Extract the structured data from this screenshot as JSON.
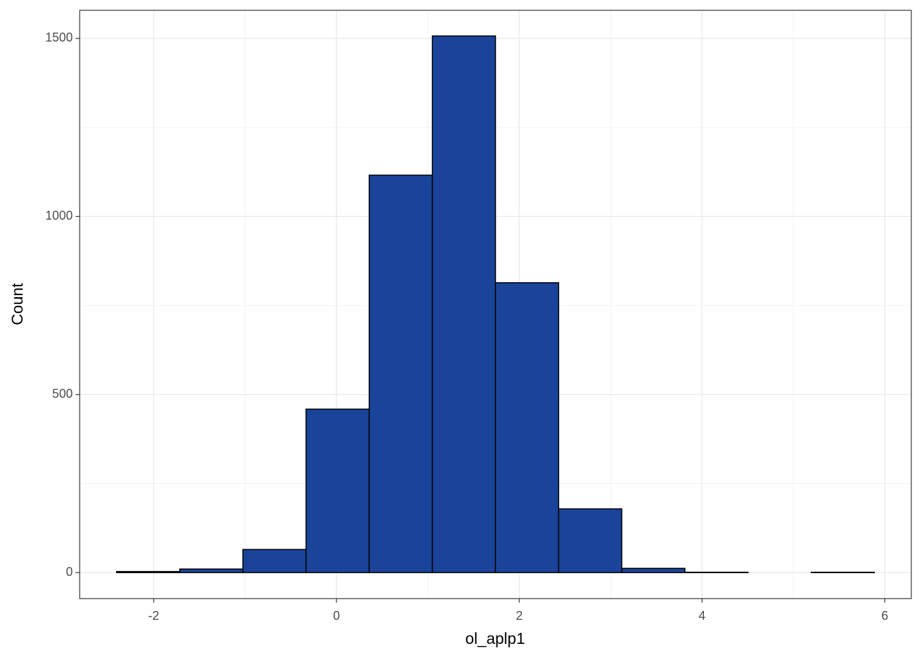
{
  "chart_data": {
    "type": "histogram",
    "x_label": "ol_aplp1",
    "y_label": "Count",
    "bins": [
      -2.406,
      -1.715,
      -1.024,
      -0.333,
      0.358,
      1.049,
      1.74,
      2.431,
      3.122,
      3.813,
      4.504,
      5.195,
      5.886
    ],
    "values": [
      3,
      10,
      65,
      459,
      1116,
      1507,
      814,
      179,
      12,
      1,
      0,
      1
    ],
    "color": "#1a449a",
    "edge_color": "#000000",
    "xlim": [
      -2.81,
      6.29
    ],
    "xticks": [
      -2,
      0,
      2,
      4,
      6
    ],
    "minor_xticks": [
      -1,
      1,
      3,
      5
    ],
    "ylim": [
      -73,
      1579
    ],
    "yticks": [
      0,
      500,
      1000,
      1500
    ],
    "minor_yticks": [
      250,
      750,
      1250
    ],
    "grid": true
  }
}
